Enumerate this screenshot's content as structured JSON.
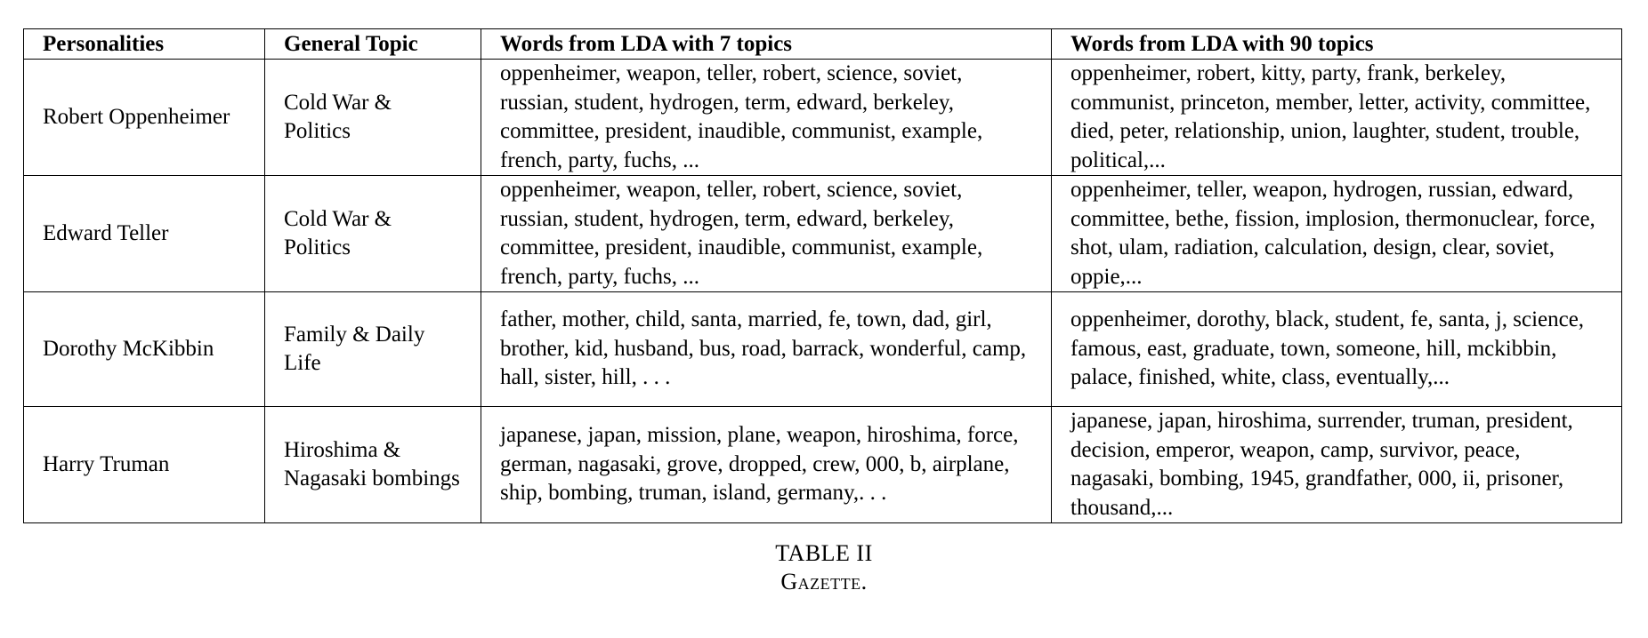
{
  "table": {
    "headers": [
      "Personalities",
      "General Topic",
      "Words from LDA with 7 topics",
      "Words from LDA with 90 topics"
    ],
    "rows": [
      {
        "personality": "Robert Oppenheimer",
        "topic": "Cold War & Politics",
        "lda7": "oppenheimer, weapon, teller, robert, science, soviet, russian, student, hydrogen, term, edward, berkeley, committee, president, inaudible, communist, example, french, party, fuchs, ...",
        "lda90": "oppenheimer, robert, kitty, party, frank, berkeley, communist, princeton, member, letter, activity, committee, died, peter, relationship, union, laughter, student, trouble, political,..."
      },
      {
        "personality": "Edward Teller",
        "topic": "Cold War & Politics",
        "lda7": "oppenheimer, weapon, teller, robert, science, soviet, russian, student, hydrogen, term, edward, berkeley, committee, president, inaudible, communist, example, french, party, fuchs, ...",
        "lda90": "oppenheimer, teller, weapon, hydrogen, russian, edward, committee, bethe, fission, implosion, thermonuclear, force, shot, ulam, radiation, calculation, design, clear, soviet, oppie,..."
      },
      {
        "personality": "Dorothy McKibbin",
        "topic": "Family & Daily Life",
        "lda7": "father, mother, child, santa, married, fe, town, dad, girl, brother, kid, husband, bus, road, barrack, wonderful, camp, hall, sister, hill, . . .",
        "lda90": "oppenheimer, dorothy, black, student, fe, santa, j, science, famous, east, graduate, town, someone, hill, mckibbin, palace, finished, white, class, eventually,..."
      },
      {
        "personality": "Harry Truman",
        "topic": "Hiroshima & Nagasaki bombings",
        "lda7": "japanese, japan, mission, plane, weapon, hiroshima, force, german, nagasaki, grove, dropped, crew, 000, b, airplane, ship, bombing, truman, island, germany,. . .",
        "lda90": "japanese, japan, hiroshima, surrender, truman, president, decision, emperor, weapon, camp, survivor, peace, nagasaki, bombing, 1945, grandfather, 000, ii, prisoner, thousand,..."
      }
    ]
  },
  "caption": {
    "label": "TABLE II",
    "title": "Gazette."
  }
}
